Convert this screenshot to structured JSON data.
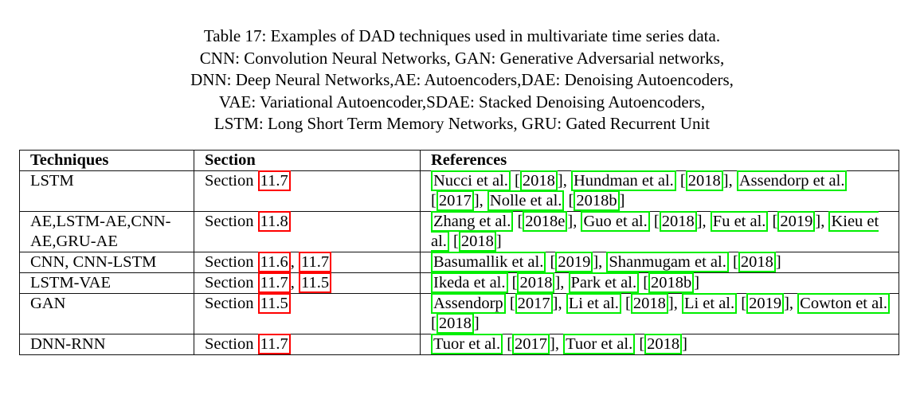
{
  "caption": [
    "Table 17: Examples of DAD techniques used in multivariate time series data.",
    "CNN: Convolution Neural Networks, GAN: Generative Adversarial networks,",
    "DNN: Deep Neural Networks,AE: Autoencoders,DAE: Denoising Autoencoders,",
    "VAE: Variational Autoencoder,SDAE: Stacked Denoising Autoencoders,",
    "LSTM: Long Short Term Memory Networks, GRU: Gated Recurrent Unit"
  ],
  "headers": [
    "Techniques",
    "Section",
    "References"
  ],
  "rows": [
    {
      "technique": "LSTM",
      "section_prefix": "Section ",
      "sections": [
        "11.7"
      ],
      "refs": [
        {
          "author": "Nucci et al.",
          "year": "2018"
        },
        {
          "author": "Hundman et al.",
          "year": "2018"
        },
        {
          "author": "Assendorp et al.",
          "year": "2017"
        },
        {
          "author": "Nolle et al.",
          "year": "2018b"
        }
      ]
    },
    {
      "technique": "AE,LSTM-AE,CNN-AE,GRU-AE",
      "section_prefix": "Section ",
      "sections": [
        "11.8"
      ],
      "refs": [
        {
          "author": "Zhang et al.",
          "year": "2018e"
        },
        {
          "author": "Guo et al.",
          "year": "2018"
        },
        {
          "author": "Fu et al.",
          "year": "2019"
        },
        {
          "author": "Kieu et al.",
          "year": "2018"
        }
      ]
    },
    {
      "technique": "CNN, CNN-LSTM",
      "section_prefix": "Section ",
      "sections": [
        "11.6",
        "11.7"
      ],
      "refs": [
        {
          "author": "Basumallik et al.",
          "year": "2019"
        },
        {
          "author": "Shanmugam et al.",
          "year": "2018"
        }
      ]
    },
    {
      "technique": "LSTM-VAE",
      "section_prefix": "Section ",
      "sections": [
        "11.7",
        "11.5"
      ],
      "refs": [
        {
          "author": "Ikeda et al.",
          "year": "2018"
        },
        {
          "author": "Park et al.",
          "year": "2018b"
        }
      ]
    },
    {
      "technique": "GAN",
      "section_prefix": "Section ",
      "sections": [
        "11.5"
      ],
      "refs": [
        {
          "author": "Assendorp",
          "year": "2017"
        },
        {
          "author": "Li et al.",
          "year": "2018"
        },
        {
          "author": "Li et al.",
          "year": "2019"
        },
        {
          "author": "Cowton et al.",
          "year": "2018"
        }
      ]
    },
    {
      "technique": "DNN-RNN",
      "section_prefix": "Section ",
      "sections": [
        "11.7"
      ],
      "refs": [
        {
          "author": "Tuor et al.",
          "year": "2017"
        },
        {
          "author": "Tuor et al.",
          "year": "2018"
        }
      ]
    }
  ],
  "colors": {
    "section_link_box": "#ff0000",
    "citation_link_box": "#00ee00"
  }
}
